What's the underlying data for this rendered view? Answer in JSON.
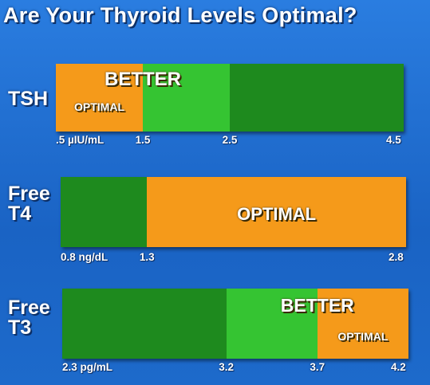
{
  "title": "Are Your Thyroid Levels Optimal?",
  "colors": {
    "background": "#1f6fd1",
    "dark_green": "#1e8a1e",
    "light_green": "#35c432",
    "orange": "#f59a1a"
  },
  "chart_data": [
    {
      "type": "bar",
      "label_lines": [
        "TSH"
      ],
      "axis_unit": "µIU/mL",
      "ticks": [
        {
          "value": 0.5,
          "text": ".5 µIU/mL"
        },
        {
          "value": 1.5,
          "text": "1.5"
        },
        {
          "value": 2.5,
          "text": "2.5"
        },
        {
          "value": 4.5,
          "text": "4.5"
        }
      ],
      "range": [
        0.5,
        4.5
      ],
      "zones": [
        {
          "from": 0.5,
          "to": 4.5,
          "color": "dark_green"
        },
        {
          "from": 0.5,
          "to": 2.5,
          "color": "light_green",
          "label": "BETTER"
        },
        {
          "from": 0.5,
          "to": 1.5,
          "color": "orange",
          "label": "OPTIMAL"
        }
      ]
    },
    {
      "type": "bar",
      "label_lines": [
        "Free",
        "T4"
      ],
      "axis_unit": "ng/dL",
      "ticks": [
        {
          "value": 0.8,
          "text": "0.8 ng/dL"
        },
        {
          "value": 1.3,
          "text": "1.3"
        },
        {
          "value": 2.8,
          "text": "2.8"
        }
      ],
      "range": [
        0.8,
        2.8
      ],
      "zones": [
        {
          "from": 0.8,
          "to": 2.8,
          "color": "dark_green"
        },
        {
          "from": 1.3,
          "to": 2.8,
          "color": "orange",
          "label": "OPTIMAL"
        }
      ]
    },
    {
      "type": "bar",
      "label_lines": [
        "Free",
        "T3"
      ],
      "axis_unit": "pg/mL",
      "ticks": [
        {
          "value": 2.3,
          "text": "2.3 pg/mL"
        },
        {
          "value": 3.2,
          "text": "3.2"
        },
        {
          "value": 3.7,
          "text": "3.7"
        },
        {
          "value": 4.2,
          "text": "4.2"
        }
      ],
      "range": [
        2.3,
        4.2
      ],
      "zones": [
        {
          "from": 2.3,
          "to": 4.2,
          "color": "dark_green"
        },
        {
          "from": 3.2,
          "to": 4.2,
          "color": "light_green",
          "label": "BETTER"
        },
        {
          "from": 3.7,
          "to": 4.2,
          "color": "orange",
          "label": "OPTIMAL"
        }
      ]
    }
  ]
}
